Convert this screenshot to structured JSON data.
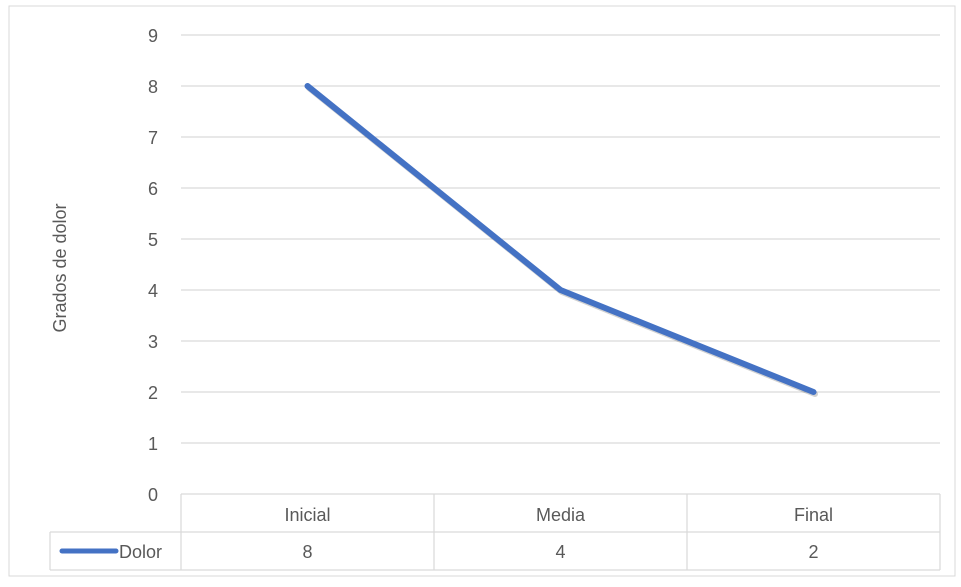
{
  "chart_data": {
    "type": "line",
    "title": "",
    "xlabel": "",
    "ylabel": "Grados de dolor",
    "categories": [
      "Inicial",
      "Media",
      "Final"
    ],
    "series": [
      {
        "name": "Dolor",
        "values": [
          8,
          4,
          2
        ],
        "color": "#4472C4"
      }
    ],
    "ylim": [
      0,
      9
    ],
    "yticks": [
      "0",
      "1",
      "2",
      "3",
      "4",
      "5",
      "6",
      "7",
      "8",
      "9"
    ],
    "grid": true,
    "legend": "data-table",
    "data_table": {
      "row_label": "Dolor",
      "values": [
        "8",
        "4",
        "2"
      ]
    }
  },
  "colors": {
    "gridline": "#d9d9d9",
    "border": "#d9d9d9",
    "text": "#595959",
    "series": "#4472C4"
  }
}
